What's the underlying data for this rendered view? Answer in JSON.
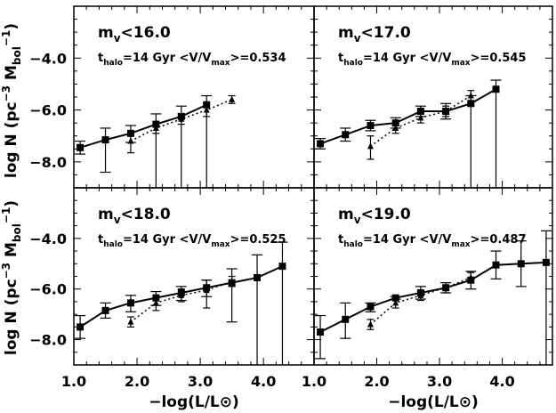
{
  "figure": {
    "xlabel": "−log(L/L⊙)",
    "ylabel": "log N (pc⁻³ M_bol⁻¹)"
  },
  "chart_data": [
    {
      "type": "scatter",
      "panel": "top-left",
      "title_main": "m",
      "title_sub": "v",
      "title_tail": "<16.0",
      "note_t": "t",
      "note_t_sub": "halo",
      "note_mid": "=14 Gyr  <V/V",
      "note_v_sub": "max",
      "note_tail": ">=0.534",
      "xlim": [
        1.0,
        4.8
      ],
      "ylim": [
        -9.0,
        -2.0
      ],
      "series": [
        {
          "style": "solid-square",
          "x": [
            1.1,
            1.5,
            1.9,
            2.3,
            2.7,
            3.1
          ],
          "y": [
            -7.45,
            -7.15,
            -6.9,
            -6.55,
            -6.25,
            -5.8
          ],
          "err_low": [
            0.25,
            1.25,
            0.35,
            2.45,
            2.75,
            3.2
          ],
          "err_high": [
            0.25,
            0.45,
            0.3,
            0.4,
            0.4,
            0.35
          ]
        },
        {
          "style": "dotted-triangle",
          "x": [
            1.9,
            2.3,
            2.7,
            3.1,
            3.5
          ],
          "y": [
            -7.2,
            -6.7,
            -6.35,
            -6.0,
            -5.6
          ],
          "err_low": [
            0.45,
            0.2,
            0.2,
            0.25,
            0.15
          ],
          "err_high": [
            0.35,
            0.2,
            0.2,
            0.25,
            0.15
          ]
        }
      ]
    },
    {
      "type": "scatter",
      "panel": "top-right",
      "title_main": "m",
      "title_sub": "v",
      "title_tail": "<17.0",
      "note_t": "t",
      "note_t_sub": "halo",
      "note_mid": "=14 Gyr  <V/V",
      "note_v_sub": "max",
      "note_tail": ">=0.545",
      "xlim": [
        1.0,
        4.8
      ],
      "ylim": [
        -9.0,
        -2.0
      ],
      "series": [
        {
          "style": "solid-square",
          "x": [
            1.1,
            1.5,
            1.9,
            2.3,
            2.7,
            3.1,
            3.5,
            3.9
          ],
          "y": [
            -7.3,
            -6.95,
            -6.6,
            -6.5,
            -6.05,
            -6.05,
            -5.75,
            -5.2
          ],
          "err_low": [
            0.2,
            0.25,
            0.2,
            0.2,
            0.2,
            0.3,
            3.25,
            3.8
          ],
          "err_high": [
            0.2,
            0.25,
            0.2,
            0.2,
            0.2,
            0.3,
            0.3,
            0.35
          ]
        },
        {
          "style": "dotted-triangle",
          "x": [
            1.9,
            2.3,
            2.7,
            3.1,
            3.5
          ],
          "y": [
            -7.4,
            -6.7,
            -6.3,
            -6.05,
            -5.45
          ],
          "err_low": [
            0.5,
            0.2,
            0.2,
            0.2,
            0.25
          ],
          "err_high": [
            0.4,
            0.2,
            0.2,
            0.2,
            0.2
          ]
        }
      ]
    },
    {
      "type": "scatter",
      "panel": "bottom-left",
      "title_main": "m",
      "title_sub": "v",
      "title_tail": "<18.0",
      "note_t": "t",
      "note_t_sub": "halo",
      "note_mid": "=14 Gyr  <V/V",
      "note_v_sub": "max",
      "note_tail": ">=0.525",
      "xlim": [
        1.0,
        4.8
      ],
      "ylim": [
        -9.0,
        -2.0
      ],
      "series": [
        {
          "style": "solid-square",
          "x": [
            1.1,
            1.5,
            1.9,
            2.3,
            2.7,
            3.1,
            3.5,
            3.9,
            4.3
          ],
          "y": [
            -7.5,
            -6.85,
            -6.55,
            -6.35,
            -6.15,
            -5.95,
            -5.75,
            -5.55,
            -5.1
          ],
          "err_low": [
            0.45,
            0.3,
            0.35,
            0.3,
            0.3,
            0.35,
            1.55,
            3.45,
            3.9
          ],
          "err_high": [
            0.45,
            0.3,
            0.3,
            0.25,
            0.25,
            0.3,
            0.55,
            0.9,
            0.95
          ]
        },
        {
          "style": "dotted-triangle",
          "x": [
            1.9,
            2.3,
            2.7,
            3.1,
            3.5
          ],
          "y": [
            -7.3,
            -6.55,
            -6.25,
            -6.05,
            -5.7
          ],
          "err_low": [
            0.2,
            0.3,
            0.25,
            0.7,
            0.2
          ],
          "err_high": [
            0.2,
            0.2,
            0.25,
            0.4,
            0.2
          ]
        }
      ]
    },
    {
      "type": "scatter",
      "panel": "bottom-right",
      "title_main": "m",
      "title_sub": "v",
      "title_tail": "<19.0",
      "note_t": "t",
      "note_t_sub": "halo",
      "note_mid": "=14 Gyr  <V/V",
      "note_v_sub": "max",
      "note_tail": ">=0.487",
      "xlim": [
        1.0,
        4.8
      ],
      "ylim": [
        -9.0,
        -2.0
      ],
      "series": [
        {
          "style": "solid-square",
          "x": [
            1.1,
            1.5,
            1.9,
            2.3,
            2.7,
            3.1,
            3.5,
            3.9,
            4.3,
            4.7
          ],
          "y": [
            -7.7,
            -7.2,
            -6.7,
            -6.35,
            -6.15,
            -5.95,
            -5.65,
            -5.05,
            -5.0,
            -4.95
          ],
          "err_low": [
            1.05,
            0.75,
            0.2,
            0.05,
            0.25,
            0.2,
            0.35,
            0.55,
            0.9,
            4.05
          ],
          "err_high": [
            0.65,
            0.65,
            0.15,
            0.05,
            0.25,
            0.2,
            0.35,
            0.55,
            0.9,
            1.25
          ]
        },
        {
          "style": "dotted-triangle",
          "x": [
            1.9,
            2.3,
            2.7,
            3.1,
            3.5
          ],
          "y": [
            -7.4,
            -6.55,
            -6.25,
            -5.95,
            -5.55
          ],
          "err_low": [
            0.2,
            0.2,
            0.2,
            0.2,
            0.2
          ],
          "err_high": [
            0.2,
            0.2,
            0.2,
            0.2,
            0.2
          ]
        }
      ]
    }
  ]
}
